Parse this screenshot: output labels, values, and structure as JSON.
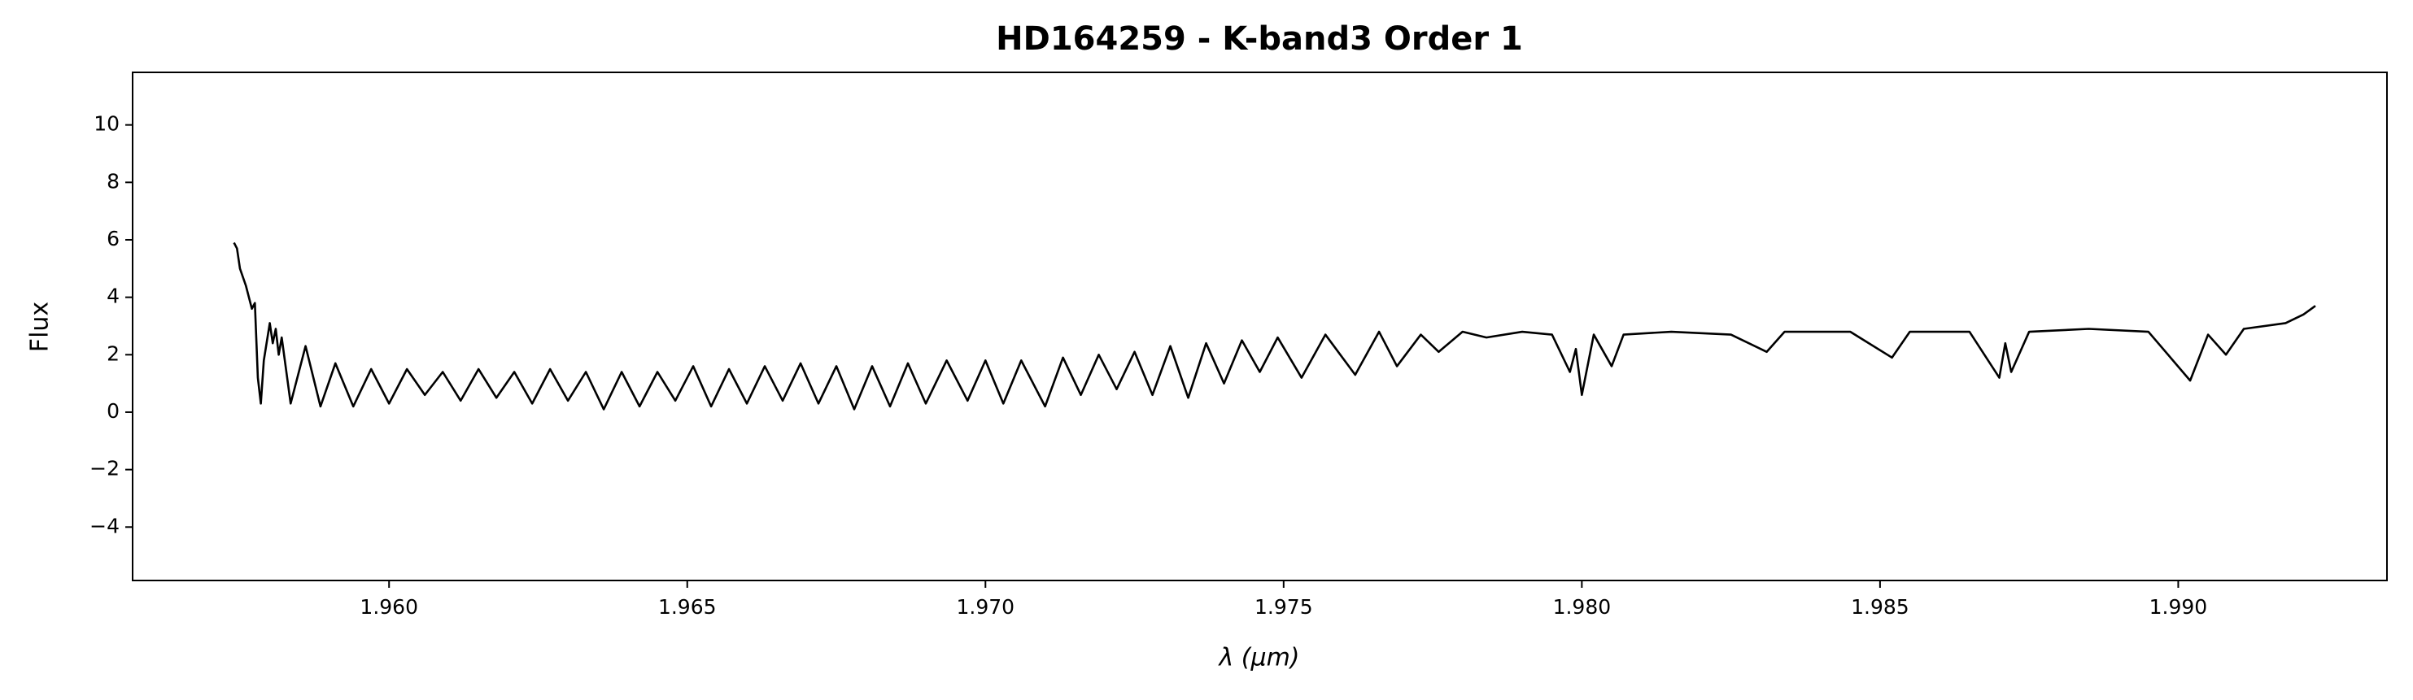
{
  "chart_data": {
    "type": "line",
    "title": "HD164259 - K-band3 Order 1",
    "x_label": "λ (μm)",
    "y_label": "Flux",
    "xlim": [
      1.9557,
      1.9935
    ],
    "ylim": [
      -5.86,
      11.83
    ],
    "xticks": [
      {
        "value": 1.96,
        "label": "1.960"
      },
      {
        "value": 1.965,
        "label": "1.965"
      },
      {
        "value": 1.97,
        "label": "1.970"
      },
      {
        "value": 1.975,
        "label": "1.975"
      },
      {
        "value": 1.98,
        "label": "1.980"
      },
      {
        "value": 1.985,
        "label": "1.985"
      },
      {
        "value": 1.99,
        "label": "1.990"
      }
    ],
    "yticks": [
      {
        "value": -4,
        "label": "−4"
      },
      {
        "value": -2,
        "label": "−2"
      },
      0,
      2,
      4,
      6,
      8,
      10
    ],
    "grid": false,
    "series": [
      {
        "color": "#000000",
        "x": [
          1.9574,
          1.95745,
          1.9575,
          1.9576,
          1.9577,
          1.95775,
          1.9578,
          1.95785,
          1.9579,
          1.958,
          1.95805,
          1.9581,
          1.95815,
          1.9582,
          1.95835,
          1.9586,
          1.95885,
          1.9591,
          1.9594,
          1.9597,
          1.96,
          1.9603,
          1.9606,
          1.9609,
          1.9612,
          1.9615,
          1.9618,
          1.9621,
          1.9624,
          1.9627,
          1.963,
          1.9633,
          1.9636,
          1.9639,
          1.9642,
          1.9645,
          1.9648,
          1.9651,
          1.9654,
          1.9657,
          1.966,
          1.9663,
          1.9666,
          1.9669,
          1.9672,
          1.9675,
          1.9678,
          1.9681,
          1.9684,
          1.9687,
          1.969,
          1.96935,
          1.9697,
          1.97,
          1.9703,
          1.9706,
          1.971,
          1.9713,
          1.9716,
          1.9719,
          1.9722,
          1.9725,
          1.9728,
          1.9731,
          1.9734,
          1.9737,
          1.974,
          1.9743,
          1.9746,
          1.9749,
          1.9753,
          1.9757,
          1.9762,
          1.9766,
          1.9769,
          1.9773,
          1.9776,
          1.978,
          1.9784,
          1.979,
          1.9795,
          1.9798,
          1.9799,
          1.98,
          1.9802,
          1.9805,
          1.9807,
          1.9815,
          1.9825,
          1.9831,
          1.9834,
          1.9845,
          1.9852,
          1.9855,
          1.9865,
          1.987,
          1.9871,
          1.9872,
          1.9875,
          1.9885,
          1.9895,
          1.9902,
          1.9905,
          1.9908,
          1.9911,
          1.9918,
          1.9921,
          1.9923
        ],
        "values": [
          5.9,
          5.7,
          5.0,
          4.4,
          3.6,
          3.8,
          1.2,
          0.3,
          1.8,
          3.1,
          2.4,
          2.9,
          2.0,
          2.6,
          0.3,
          2.3,
          0.2,
          1.7,
          0.2,
          1.5,
          0.3,
          1.5,
          0.6,
          1.4,
          0.4,
          1.5,
          0.5,
          1.4,
          0.3,
          1.5,
          0.4,
          1.4,
          0.1,
          1.4,
          0.2,
          1.4,
          0.4,
          1.6,
          0.2,
          1.5,
          0.3,
          1.6,
          0.4,
          1.7,
          0.3,
          1.6,
          0.1,
          1.6,
          0.2,
          1.7,
          0.3,
          1.8,
          0.4,
          1.8,
          0.3,
          1.8,
          0.2,
          1.9,
          0.6,
          2.0,
          0.8,
          2.1,
          0.6,
          2.3,
          0.5,
          2.4,
          1.0,
          2.5,
          1.4,
          2.6,
          1.2,
          2.7,
          1.3,
          2.8,
          1.6,
          2.7,
          2.1,
          2.8,
          2.6,
          2.8,
          2.7,
          1.4,
          2.2,
          0.6,
          2.7,
          1.6,
          2.7,
          2.8,
          2.7,
          2.1,
          2.8,
          2.8,
          1.9,
          2.8,
          2.8,
          1.2,
          2.4,
          1.4,
          2.8,
          2.9,
          2.8,
          1.1,
          2.7,
          2.0,
          2.9,
          3.1,
          3.4,
          3.7
        ]
      }
    ]
  }
}
